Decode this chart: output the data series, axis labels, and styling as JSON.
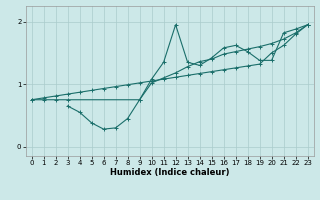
{
  "xlabel": "Humidex (Indice chaleur)",
  "ylabel": "",
  "background_color": "#cce8e8",
  "grid_color": "#aacccc",
  "line_color": "#1a6e6a",
  "xlim": [
    -0.5,
    23.5
  ],
  "ylim": [
    -0.15,
    2.25
  ],
  "yticks": [
    0,
    1,
    2
  ],
  "xticks": [
    0,
    1,
    2,
    3,
    4,
    5,
    6,
    7,
    8,
    9,
    10,
    11,
    12,
    13,
    14,
    15,
    16,
    17,
    18,
    19,
    20,
    21,
    22,
    23
  ],
  "series1_x": [
    0,
    1,
    2,
    3,
    4,
    5,
    6,
    7,
    8,
    9,
    10,
    11,
    12,
    13,
    14,
    15,
    16,
    17,
    18,
    19,
    20,
    21,
    22,
    23
  ],
  "series1_y": [
    0.75,
    0.78,
    0.81,
    0.84,
    0.87,
    0.9,
    0.93,
    0.96,
    0.99,
    1.02,
    1.05,
    1.08,
    1.11,
    1.14,
    1.17,
    1.2,
    1.23,
    1.26,
    1.29,
    1.32,
    1.5,
    1.62,
    1.8,
    1.95
  ],
  "series2_x": [
    3,
    4,
    5,
    6,
    7,
    8,
    9,
    10,
    11,
    12,
    13,
    14,
    15,
    16,
    17,
    18,
    19,
    20,
    21,
    22,
    23
  ],
  "series2_y": [
    0.65,
    0.55,
    0.38,
    0.28,
    0.3,
    0.45,
    0.75,
    1.08,
    1.35,
    1.95,
    1.35,
    1.3,
    1.42,
    1.58,
    1.62,
    1.52,
    1.38,
    1.38,
    1.82,
    1.88,
    1.95
  ],
  "series3_x": [
    0,
    1,
    2,
    3,
    9,
    10,
    11,
    12,
    13,
    14,
    15,
    16,
    17,
    18,
    19,
    20,
    21,
    22,
    23
  ],
  "series3_y": [
    0.75,
    0.75,
    0.75,
    0.75,
    0.75,
    1.02,
    1.1,
    1.18,
    1.28,
    1.36,
    1.4,
    1.48,
    1.52,
    1.56,
    1.6,
    1.65,
    1.72,
    1.82,
    1.95
  ],
  "figsize": [
    3.2,
    2.0
  ],
  "dpi": 100
}
